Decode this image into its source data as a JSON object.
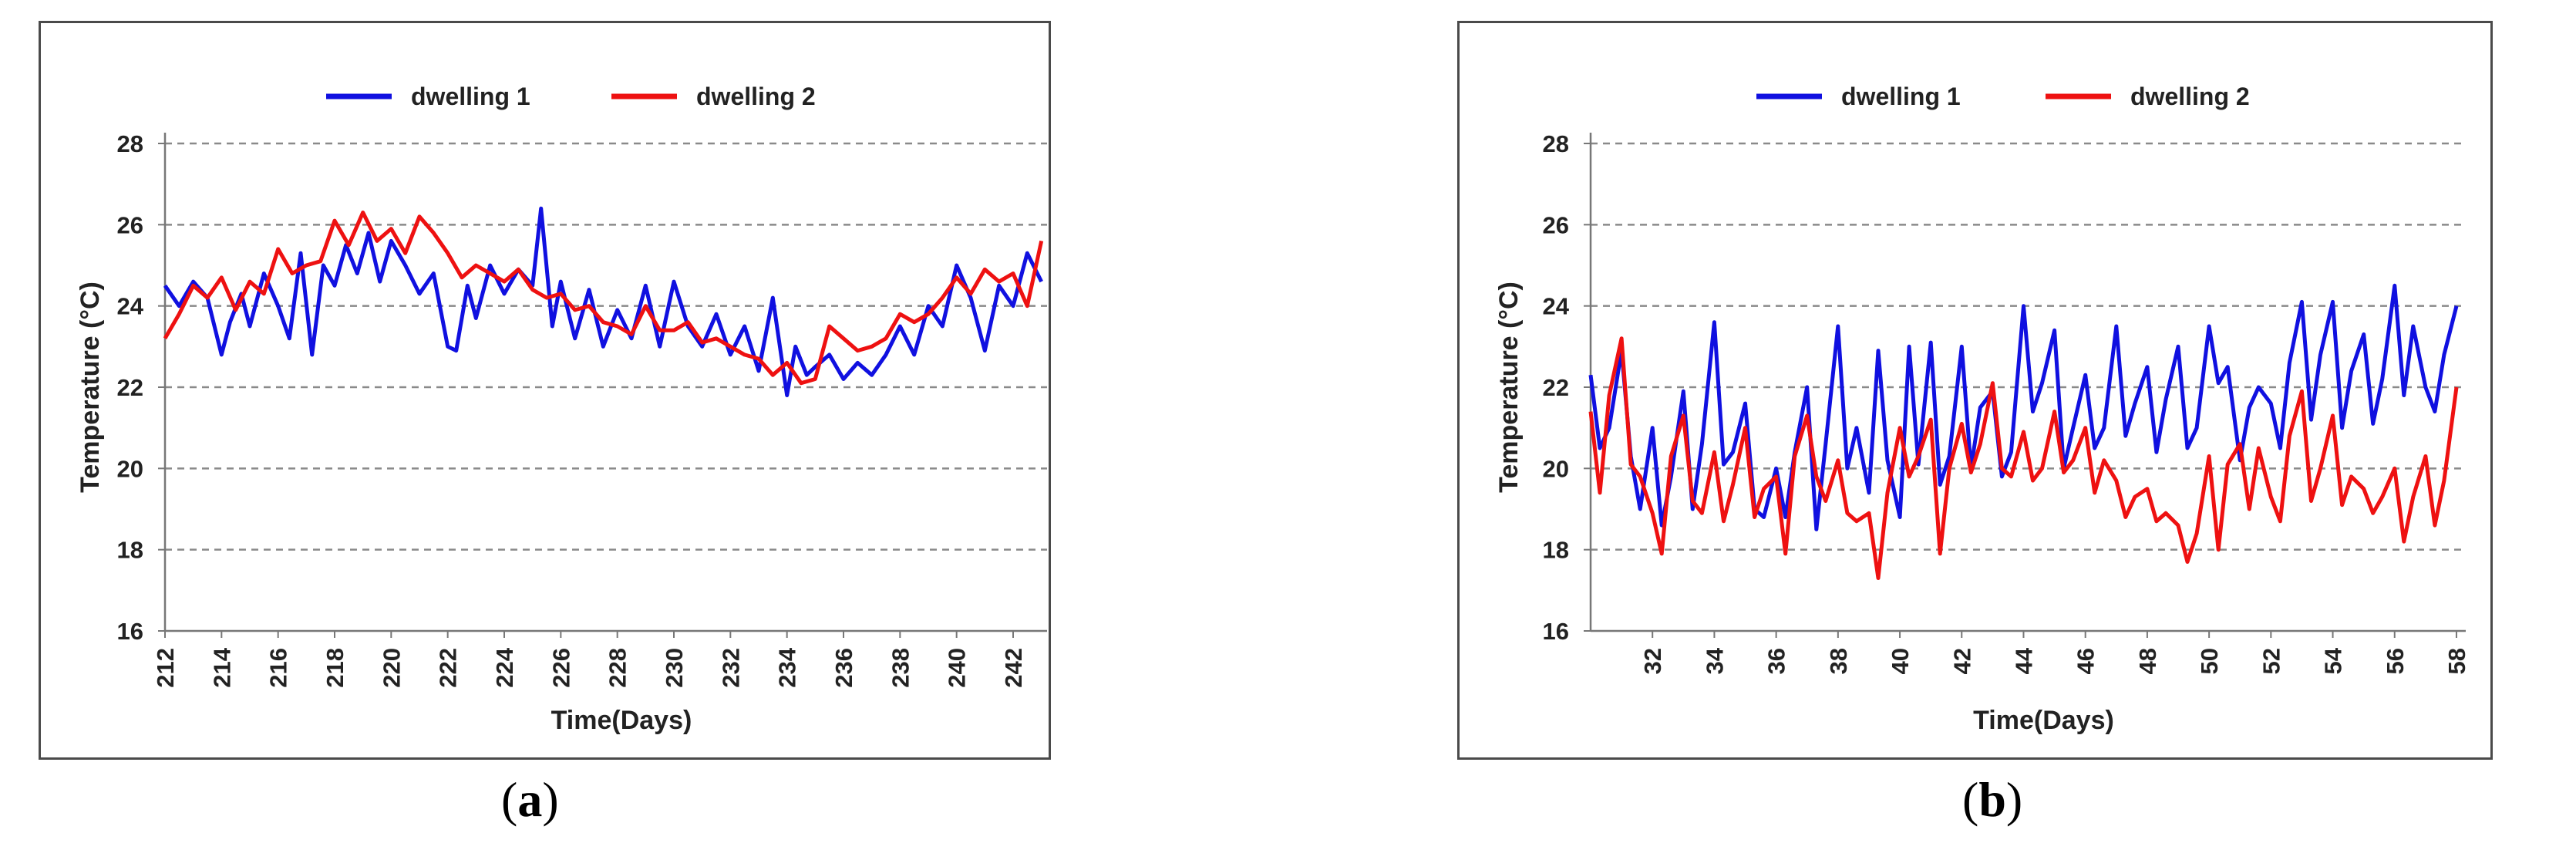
{
  "chart_data": [
    {
      "id": "a",
      "type": "line",
      "title": "",
      "xlabel": "Time(Days)",
      "ylabel": "Temperature (°C)",
      "xlim": [
        212,
        243.2
      ],
      "ylim": [
        16,
        28
      ],
      "xticks": [
        "212",
        "214",
        "216",
        "218",
        "220",
        "222",
        "224",
        "226",
        "228",
        "230",
        "232",
        "234",
        "236",
        "238",
        "240",
        "242"
      ],
      "yticks": [
        "16",
        "18",
        "20",
        "22",
        "24",
        "26",
        "28"
      ],
      "grid": "horizontal-dashed",
      "legend_position": "top",
      "series": [
        {
          "name": "dwelling 1",
          "color": "#1010e0",
          "x": [
            212,
            212.5,
            213,
            213.5,
            214,
            214.3,
            214.7,
            215,
            215.5,
            216,
            216.4,
            216.8,
            217.2,
            217.6,
            218,
            218.4,
            218.8,
            219.2,
            219.6,
            220,
            220.5,
            221,
            221.5,
            222,
            222.3,
            222.7,
            223,
            223.5,
            224,
            224.5,
            225,
            225.3,
            225.7,
            226,
            226.5,
            227,
            227.5,
            228,
            228.5,
            229,
            229.5,
            230,
            230.5,
            231,
            231.5,
            232,
            232.5,
            233,
            233.5,
            234,
            234.3,
            234.7,
            235,
            235.5,
            236,
            236.5,
            237,
            237.5,
            238,
            238.5,
            239,
            239.5,
            240,
            240.5,
            241,
            241.5,
            242,
            242.5,
            243
          ],
          "y": [
            24.5,
            24.0,
            24.6,
            24.2,
            22.8,
            23.6,
            24.3,
            23.5,
            24.8,
            24.0,
            23.2,
            25.3,
            22.8,
            25.0,
            24.5,
            25.5,
            24.8,
            25.8,
            24.6,
            25.6,
            25.0,
            24.3,
            24.8,
            23.0,
            22.9,
            24.5,
            23.7,
            25.0,
            24.3,
            24.9,
            24.5,
            26.4,
            23.5,
            24.6,
            23.2,
            24.4,
            23.0,
            23.9,
            23.2,
            24.5,
            23.0,
            24.6,
            23.5,
            23.0,
            23.8,
            22.8,
            23.5,
            22.4,
            24.2,
            21.8,
            23.0,
            22.3,
            22.5,
            22.8,
            22.2,
            22.6,
            22.3,
            22.8,
            23.5,
            22.8,
            24.0,
            23.5,
            25.0,
            24.2,
            22.9,
            24.5,
            24.0,
            25.3,
            24.6
          ]
        },
        {
          "name": "dwelling 2",
          "color": "#ee1111",
          "x": [
            212,
            212.5,
            213,
            213.5,
            214,
            214.5,
            215,
            215.5,
            216,
            216.5,
            217,
            217.5,
            218,
            218.5,
            219,
            219.5,
            220,
            220.5,
            221,
            221.5,
            222,
            222.5,
            223,
            223.5,
            224,
            224.5,
            225,
            225.5,
            226,
            226.5,
            227,
            227.5,
            228,
            228.5,
            229,
            229.5,
            230,
            230.5,
            231,
            231.5,
            232,
            232.5,
            233,
            233.5,
            234,
            234.5,
            235,
            235.5,
            236,
            236.5,
            237,
            237.5,
            238,
            238.5,
            239,
            239.5,
            240,
            240.5,
            241,
            241.5,
            242,
            242.5,
            243
          ],
          "y": [
            23.2,
            23.8,
            24.5,
            24.2,
            24.7,
            23.9,
            24.6,
            24.3,
            25.4,
            24.8,
            25.0,
            25.1,
            26.1,
            25.5,
            26.3,
            25.6,
            25.9,
            25.3,
            26.2,
            25.8,
            25.3,
            24.7,
            25.0,
            24.8,
            24.6,
            24.9,
            24.4,
            24.2,
            24.3,
            23.9,
            24.0,
            23.6,
            23.5,
            23.3,
            24.0,
            23.4,
            23.4,
            23.6,
            23.1,
            23.2,
            23.0,
            22.8,
            22.7,
            22.3,
            22.6,
            22.1,
            22.2,
            23.5,
            23.2,
            22.9,
            23.0,
            23.2,
            23.8,
            23.6,
            23.8,
            24.2,
            24.7,
            24.3,
            24.9,
            24.6,
            24.8,
            24.0,
            25.6
          ]
        }
      ]
    },
    {
      "id": "b",
      "type": "line",
      "title": "",
      "xlabel": "Time(Days)",
      "ylabel": "Temperature (°C)",
      "xlim": [
        30,
        58.3
      ],
      "ylim": [
        16,
        28
      ],
      "xticks": [
        "32",
        "34",
        "36",
        "38",
        "40",
        "42",
        "44",
        "46",
        "48",
        "50",
        "52",
        "54",
        "56",
        "58"
      ],
      "yticks": [
        "16",
        "18",
        "20",
        "22",
        "24",
        "26",
        "28"
      ],
      "grid": "horizontal-dashed",
      "legend_position": "top",
      "series": [
        {
          "name": "dwelling 1",
          "color": "#1010e0",
          "x": [
            30,
            30.3,
            30.6,
            31,
            31.3,
            31.6,
            32,
            32.3,
            32.6,
            33,
            33.3,
            33.6,
            34,
            34.3,
            34.6,
            35,
            35.3,
            35.6,
            36,
            36.3,
            36.6,
            37,
            37.3,
            37.6,
            38,
            38.3,
            38.6,
            39,
            39.3,
            39.6,
            40,
            40.3,
            40.6,
            41,
            41.3,
            41.6,
            42,
            42.3,
            42.6,
            43,
            43.3,
            43.6,
            44,
            44.3,
            44.6,
            45,
            45.3,
            45.6,
            46,
            46.3,
            46.6,
            47,
            47.3,
            47.6,
            48,
            48.3,
            48.6,
            49,
            49.3,
            49.6,
            50,
            50.3,
            50.6,
            51,
            51.3,
            51.6,
            52,
            52.3,
            52.6,
            53,
            53.3,
            53.6,
            54,
            54.3,
            54.6,
            55,
            55.3,
            55.6,
            56,
            56.3,
            56.6,
            57,
            57.3,
            57.6,
            58
          ],
          "y": [
            22.3,
            20.5,
            21.0,
            22.9,
            20.3,
            19.0,
            21.0,
            18.6,
            19.8,
            21.9,
            19.0,
            20.6,
            23.6,
            20.1,
            20.4,
            21.6,
            19.0,
            18.8,
            20.0,
            18.8,
            20.4,
            22.0,
            18.5,
            20.6,
            23.5,
            20.0,
            21.0,
            19.4,
            22.9,
            20.2,
            18.8,
            23.0,
            20.1,
            23.1,
            19.6,
            20.3,
            23.0,
            20.0,
            21.5,
            21.9,
            19.8,
            20.4,
            24.0,
            21.4,
            22.1,
            23.4,
            20.0,
            21.0,
            22.3,
            20.5,
            21.0,
            23.5,
            20.8,
            21.6,
            22.5,
            20.4,
            21.7,
            23.0,
            20.5,
            21.0,
            23.5,
            22.1,
            22.5,
            20.2,
            21.5,
            22.0,
            21.6,
            20.5,
            22.6,
            24.1,
            21.2,
            22.8,
            24.1,
            21.0,
            22.4,
            23.3,
            21.1,
            22.2,
            24.5,
            21.8,
            23.5,
            22.0,
            21.4,
            22.8,
            24.0
          ]
        },
        {
          "name": "dwelling 2",
          "color": "#ee1111",
          "x": [
            30,
            30.3,
            30.6,
            31,
            31.3,
            31.6,
            32,
            32.3,
            32.6,
            33,
            33.3,
            33.6,
            34,
            34.3,
            34.6,
            35,
            35.3,
            35.6,
            36,
            36.3,
            36.6,
            37,
            37.3,
            37.6,
            38,
            38.3,
            38.6,
            39,
            39.3,
            39.6,
            40,
            40.3,
            40.6,
            41,
            41.3,
            41.6,
            42,
            42.3,
            42.6,
            43,
            43.3,
            43.6,
            44,
            44.3,
            44.6,
            45,
            45.3,
            45.6,
            46,
            46.3,
            46.6,
            47,
            47.3,
            47.6,
            48,
            48.3,
            48.6,
            49,
            49.3,
            49.6,
            50,
            50.3,
            50.6,
            51,
            51.3,
            51.6,
            52,
            52.3,
            52.6,
            53,
            53.3,
            53.6,
            54,
            54.3,
            54.6,
            55,
            55.3,
            55.6,
            56,
            56.3,
            56.6,
            57,
            57.3,
            57.6,
            58
          ],
          "y": [
            21.4,
            19.4,
            21.8,
            23.2,
            20.1,
            19.8,
            18.9,
            17.9,
            20.3,
            21.3,
            19.2,
            18.9,
            20.4,
            18.7,
            19.6,
            21.0,
            18.8,
            19.5,
            19.8,
            17.9,
            20.3,
            21.3,
            19.8,
            19.2,
            20.2,
            18.9,
            18.7,
            18.9,
            17.3,
            19.4,
            21.0,
            19.8,
            20.3,
            21.2,
            17.9,
            20.0,
            21.1,
            19.9,
            20.6,
            22.1,
            20.0,
            19.8,
            20.9,
            19.7,
            20.0,
            21.4,
            19.9,
            20.2,
            21.0,
            19.4,
            20.2,
            19.7,
            18.8,
            19.3,
            19.5,
            18.7,
            18.9,
            18.6,
            17.7,
            18.4,
            20.3,
            18.0,
            20.1,
            20.6,
            19.0,
            20.5,
            19.3,
            18.7,
            20.8,
            21.9,
            19.2,
            20.0,
            21.3,
            19.1,
            19.8,
            19.5,
            18.9,
            19.3,
            20.0,
            18.2,
            19.3,
            20.3,
            18.6,
            19.7,
            22.0
          ]
        }
      ]
    }
  ],
  "captions": {
    "a": "a",
    "b": "b"
  }
}
